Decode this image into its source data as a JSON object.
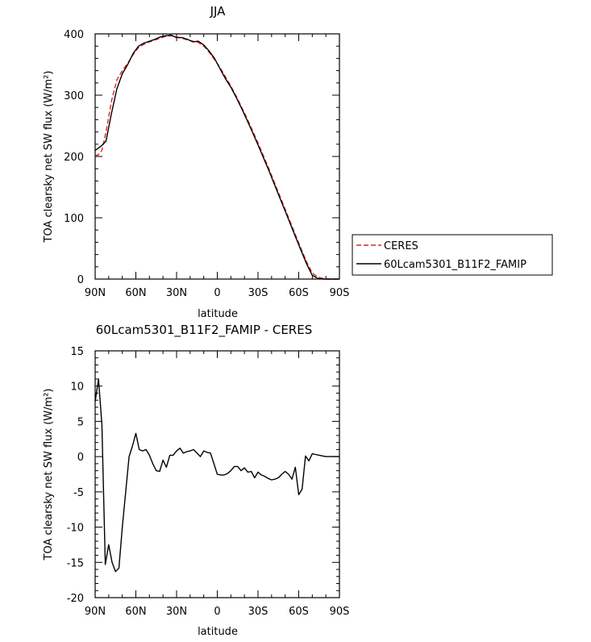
{
  "chart_data": [
    {
      "type": "line",
      "title": "JJA",
      "xlabel": "latitude",
      "ylabel": "TOA clearsky net SW flux (W/m²)",
      "xlim": [
        90,
        -90
      ],
      "ylim": [
        0,
        400
      ],
      "x_ticks": [
        90,
        60,
        30,
        0,
        -30,
        -60,
        -90
      ],
      "x_tick_labels": [
        "90N",
        "60N",
        "30N",
        "0",
        "30S",
        "60S",
        "90S"
      ],
      "y_ticks": [
        0,
        100,
        200,
        300,
        400
      ],
      "y_tick_labels": [
        "0",
        "100",
        "200",
        "300",
        "400"
      ],
      "legend": [
        "CERES",
        "60Lcam5301_B11F2_FAMIP"
      ],
      "legend_position": "right",
      "series": [
        {
          "name": "CERES",
          "color": "#e8221b",
          "dash": "dashed",
          "x": [
            90,
            88,
            85,
            82,
            78,
            74,
            70,
            66,
            62,
            58,
            54,
            50,
            46,
            42,
            38,
            34,
            30,
            26,
            22,
            18,
            14,
            10,
            6,
            2,
            -2,
            -6,
            -10,
            -14,
            -18,
            -22,
            -26,
            -30,
            -34,
            -38,
            -42,
            -46,
            -50,
            -54,
            -58,
            -62,
            -66,
            -70,
            -74,
            -78,
            -82,
            -86,
            -90
          ],
          "y": [
            202,
            202,
            210,
            240,
            290,
            325,
            340,
            352,
            366,
            378,
            383,
            387,
            390,
            393,
            396,
            397,
            395,
            393,
            390,
            388,
            386,
            380,
            370,
            358,
            345,
            330,
            315,
            298,
            280,
            262,
            242,
            222,
            201,
            180,
            158,
            136,
            114,
            92,
            70,
            48,
            27,
            10,
            3,
            1,
            0,
            0,
            0
          ]
        },
        {
          "name": "60Lcam5301_B11F2_FAMIP",
          "color": "#000000",
          "dash": "solid",
          "x": [
            90,
            88,
            85,
            82,
            78,
            74,
            70,
            66,
            62,
            58,
            54,
            50,
            46,
            42,
            38,
            34,
            30,
            26,
            22,
            18,
            14,
            10,
            6,
            2,
            -2,
            -6,
            -10,
            -14,
            -18,
            -22,
            -26,
            -30,
            -34,
            -38,
            -42,
            -46,
            -50,
            -54,
            -58,
            -62,
            -66,
            -70,
            -74,
            -78,
            -82,
            -86,
            -90
          ],
          "y": [
            210,
            213,
            218,
            225,
            270,
            310,
            335,
            350,
            368,
            380,
            385,
            388,
            391,
            395,
            397,
            398,
            394,
            394,
            391,
            387,
            388,
            382,
            372,
            360,
            343,
            327,
            313,
            296,
            278,
            259,
            239,
            219,
            198,
            177,
            155,
            133,
            111,
            89,
            67,
            45,
            24,
            6,
            1,
            0,
            0,
            0,
            0
          ]
        }
      ]
    },
    {
      "type": "line",
      "title": "60Lcam5301_B11F2_FAMIP - CERES",
      "xlabel": "latitude",
      "ylabel": "TOA clearsky net SW flux (W/m²)",
      "xlim": [
        90,
        -90
      ],
      "ylim": [
        -20,
        15
      ],
      "x_ticks": [
        90,
        60,
        30,
        0,
        -30,
        -60,
        -90
      ],
      "x_tick_labels": [
        "90N",
        "60N",
        "30N",
        "0",
        "30S",
        "60S",
        "90S"
      ],
      "y_ticks": [
        -20,
        -15,
        -10,
        -5,
        0,
        5,
        10,
        15
      ],
      "y_tick_labels": [
        "-20",
        "-15",
        "-10",
        "-5",
        "0",
        "5",
        "10",
        "15"
      ],
      "series": [
        {
          "color": "#000000",
          "dash": "solid",
          "x": [
            90,
            87.5,
            85,
            82.5,
            80,
            77.5,
            75,
            72.5,
            70,
            67.5,
            65,
            62.5,
            60,
            57.5,
            55,
            52.5,
            50,
            47.5,
            45,
            42.5,
            40,
            37.5,
            35,
            32.5,
            30,
            27.5,
            25,
            22.5,
            20,
            17.5,
            15,
            12.5,
            10,
            7.5,
            5,
            2.5,
            0,
            -2.5,
            -5,
            -7.5,
            -10,
            -12.5,
            -15,
            -17.5,
            -20,
            -22.5,
            -25,
            -27.5,
            -30,
            -32.5,
            -35,
            -37.5,
            -40,
            -42.5,
            -45,
            -47.5,
            -50,
            -52.5,
            -55,
            -57.5,
            -60,
            -62.5,
            -65,
            -67.5,
            -70,
            -72.5,
            -75,
            -77.5,
            -80,
            -82.5,
            -85,
            -87.5,
            -90
          ],
          "y": [
            7.8,
            11.0,
            4.5,
            -15.3,
            -12.5,
            -15.0,
            -16.3,
            -15.8,
            -10.0,
            -5.0,
            0.0,
            1.5,
            3.3,
            1.0,
            0.8,
            1.0,
            0.2,
            -1.0,
            -2.0,
            -2.1,
            -0.5,
            -1.5,
            0.2,
            0.2,
            0.8,
            1.2,
            0.5,
            0.7,
            0.8,
            1.0,
            0.5,
            0.0,
            0.8,
            0.6,
            0.5,
            -1.0,
            -2.5,
            -2.6,
            -2.6,
            -2.4,
            -2.0,
            -1.4,
            -1.4,
            -2.0,
            -1.6,
            -2.2,
            -2.1,
            -3.0,
            -2.2,
            -2.6,
            -2.8,
            -3.1,
            -3.3,
            -3.2,
            -3.0,
            -2.5,
            -2.1,
            -2.5,
            -3.2,
            -1.5,
            -5.4,
            -4.6,
            0.1,
            -0.6,
            0.4,
            0.3,
            0.2,
            0.1,
            0.0,
            0.0,
            0.0,
            0.0,
            0.0
          ]
        }
      ]
    }
  ]
}
